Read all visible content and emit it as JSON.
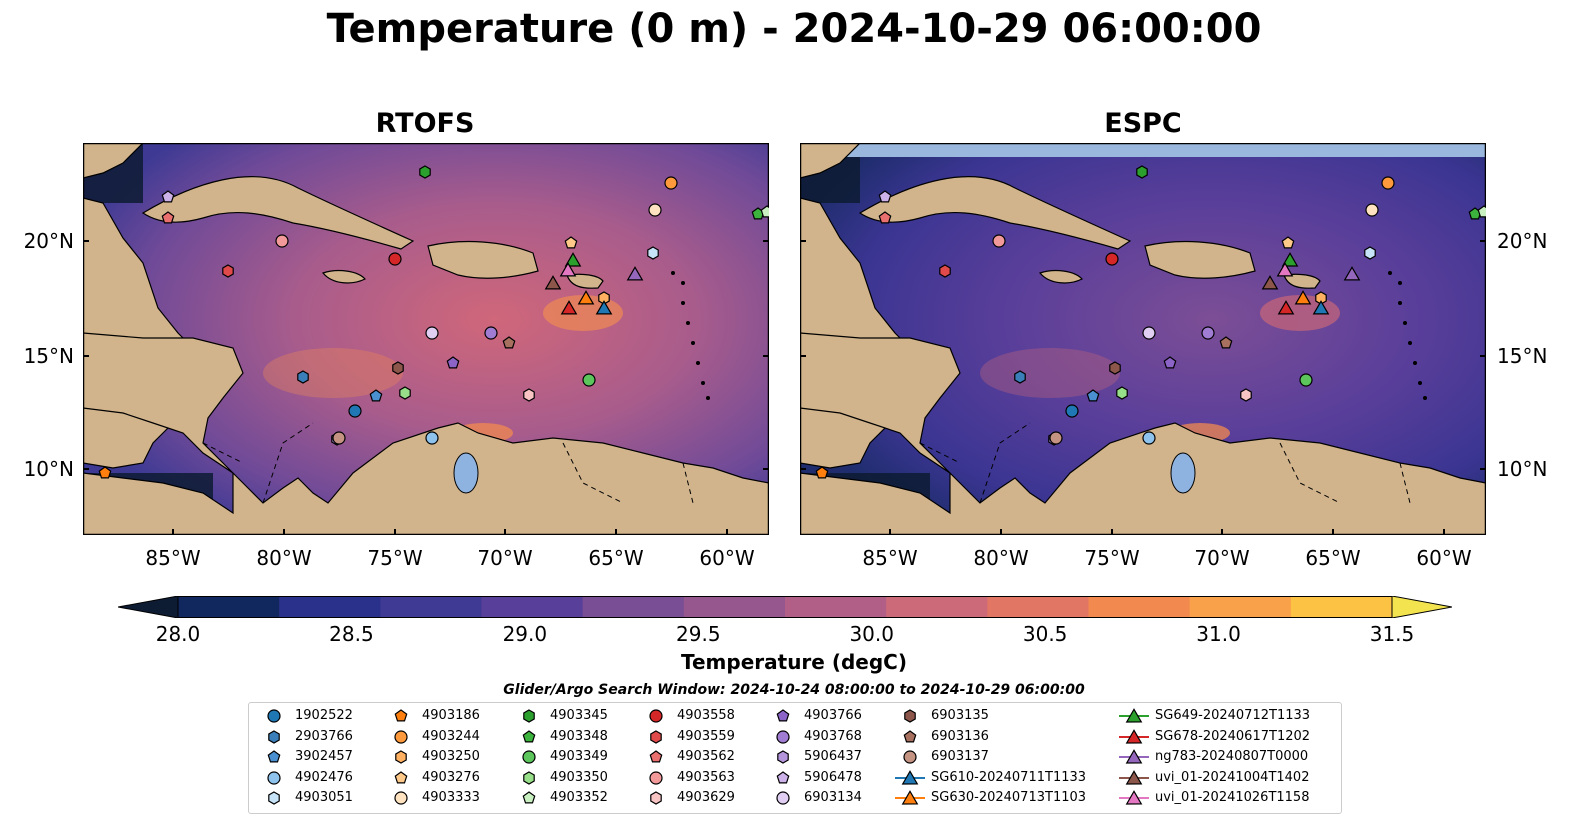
{
  "figure": {
    "title": "Temperature (0 m) - 2024-10-29 06:00:00",
    "panels": [
      {
        "id": "rtofs",
        "title": "RTOFS"
      },
      {
        "id": "espc",
        "title": "ESPC"
      }
    ],
    "axes": {
      "x_ticks": [
        "85°W",
        "80°W",
        "75°W",
        "70°W",
        "65°W",
        "60°W"
      ],
      "y_ticks": [
        "20°N",
        "15°N",
        "10°N"
      ]
    },
    "colorbar": {
      "label": "Temperature (degC)",
      "ticks": [
        "28.0",
        "28.5",
        "29.0",
        "29.5",
        "30.0",
        "30.5",
        "31.0",
        "31.5"
      ],
      "colors": [
        "#0d1b33",
        "#11285f",
        "#2a318a",
        "#3f3a94",
        "#583f99",
        "#7a4e94",
        "#95578d",
        "#b15f87",
        "#cc6a7a",
        "#e27664",
        "#f28a4f",
        "#f9a14a",
        "#fbc243",
        "#f3e44f"
      ]
    },
    "legend": {
      "title": "Glider/Argo Search Window: 2024-10-24 08:00:00 to 2024-10-29 06:00:00",
      "items": [
        {
          "label": "1902522",
          "marker": "circle",
          "color": "#1f77b4"
        },
        {
          "label": "2903766",
          "marker": "hexagon",
          "color": "#3b7fba"
        },
        {
          "label": "3902457",
          "marker": "pentagon",
          "color": "#4a8fd0"
        },
        {
          "label": "4902476",
          "marker": "circle",
          "color": "#8ec3ee"
        },
        {
          "label": "4903051",
          "marker": "hexagon",
          "color": "#c7e3f7"
        },
        {
          "label": "4903186",
          "marker": "pentagon",
          "color": "#ff7f0e"
        },
        {
          "label": "4903244",
          "marker": "circle",
          "color": "#ff9a3c"
        },
        {
          "label": "4903250",
          "marker": "hexagon",
          "color": "#ffb061"
        },
        {
          "label": "4903276",
          "marker": "pentagon",
          "color": "#ffc98a"
        },
        {
          "label": "4903333",
          "marker": "circle",
          "color": "#ffe2bf"
        },
        {
          "label": "4903345",
          "marker": "hexagon",
          "color": "#2ca02c"
        },
        {
          "label": "4903348",
          "marker": "pentagon",
          "color": "#3cb33c"
        },
        {
          "label": "4903349",
          "marker": "circle",
          "color": "#5cc55c"
        },
        {
          "label": "4903350",
          "marker": "hexagon",
          "color": "#98df8a"
        },
        {
          "label": "4903352",
          "marker": "pentagon",
          "color": "#c8f0c0"
        },
        {
          "label": "4903558",
          "marker": "circle",
          "color": "#d62728"
        },
        {
          "label": "4903559",
          "marker": "hexagon",
          "color": "#e04a4a"
        },
        {
          "label": "4903562",
          "marker": "pentagon",
          "color": "#ea6f6f"
        },
        {
          "label": "4903563",
          "marker": "circle",
          "color": "#f29a9a"
        },
        {
          "label": "4903629",
          "marker": "hexagon",
          "color": "#f8c4c4"
        },
        {
          "label": "4903766",
          "marker": "pentagon",
          "color": "#8c64c8"
        },
        {
          "label": "4903768",
          "marker": "circle",
          "color": "#a07cd2"
        },
        {
          "label": "5906437",
          "marker": "hexagon",
          "color": "#b595dc"
        },
        {
          "label": "5906478",
          "marker": "pentagon",
          "color": "#ccb2e8"
        },
        {
          "label": "6903134",
          "marker": "circle",
          "color": "#e0cff3"
        },
        {
          "label": "6903135",
          "marker": "hexagon",
          "color": "#8c564b"
        },
        {
          "label": "6903136",
          "marker": "pentagon",
          "color": "#a8705f"
        },
        {
          "label": "6903137",
          "marker": "circle",
          "color": "#c49382"
        },
        {
          "label": "SG610-20240711T1133",
          "marker": "triangle",
          "color": "#1f77b4"
        },
        {
          "label": "SG630-20240713T1103",
          "marker": "triangle",
          "color": "#ff7f0e"
        },
        {
          "label": "SG649-20240712T1133",
          "marker": "triangle",
          "color": "#2ca02c"
        },
        {
          "label": "SG678-20240617T1202",
          "marker": "triangle",
          "color": "#d62728"
        },
        {
          "label": "ng783-20240807T0000",
          "marker": "triangle",
          "color": "#9467bd"
        },
        {
          "label": "uvi_01-20241004T1402",
          "marker": "triangle",
          "color": "#8c564b"
        },
        {
          "label": "uvi_01-20241026T1158",
          "marker": "triangle",
          "color": "#e377c2"
        }
      ]
    }
  }
}
